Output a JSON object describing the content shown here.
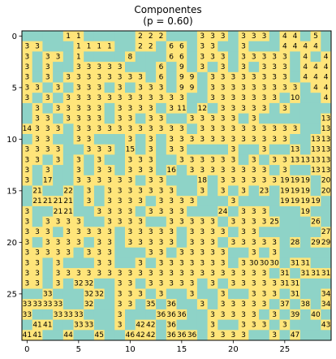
{
  "chart_data": {
    "type": "heatmap",
    "title_line1": "Componentes",
    "title_line2": "(p = 0.60)",
    "xticks": [
      0,
      5,
      10,
      15,
      20,
      25
    ],
    "yticks": [
      0,
      5,
      10,
      15,
      20,
      25
    ],
    "rows": 30,
    "cols": 30,
    "colors": {
      "open": "#ffe57a",
      "closed": "#8ed3c7",
      "text": "#000000"
    },
    "grid": [
      [
        0,
        0,
        0,
        0,
        1,
        1,
        0,
        0,
        0,
        0,
        0,
        2,
        2,
        2,
        0,
        0,
        0,
        3,
        3,
        3,
        0,
        3,
        3,
        3,
        0,
        4,
        4,
        0,
        5,
        0
      ],
      [
        3,
        3,
        0,
        0,
        0,
        1,
        1,
        1,
        1,
        0,
        0,
        2,
        2,
        0,
        6,
        6,
        0,
        3,
        3,
        0,
        0,
        3,
        0,
        0,
        0,
        4,
        4,
        4,
        4,
        0
      ],
      [
        3,
        0,
        3,
        3,
        0,
        1,
        0,
        0,
        0,
        0,
        8,
        0,
        0,
        0,
        6,
        6,
        0,
        3,
        3,
        3,
        0,
        3,
        3,
        3,
        3,
        3,
        0,
        4,
        0,
        4
      ],
      [
        3,
        0,
        3,
        0,
        0,
        3,
        3,
        3,
        3,
        3,
        0,
        0,
        0,
        6,
        0,
        9,
        0,
        3,
        0,
        3,
        0,
        3,
        0,
        3,
        3,
        3,
        0,
        4,
        4,
        4
      ],
      [
        3,
        0,
        3,
        0,
        3,
        3,
        3,
        3,
        3,
        3,
        3,
        3,
        0,
        6,
        0,
        9,
        9,
        0,
        3,
        3,
        3,
        3,
        3,
        3,
        3,
        3,
        0,
        4,
        4,
        4
      ],
      [
        3,
        3,
        0,
        3,
        0,
        3,
        3,
        3,
        0,
        3,
        0,
        3,
        3,
        3,
        0,
        9,
        9,
        0,
        3,
        3,
        3,
        3,
        3,
        3,
        3,
        3,
        3,
        0,
        4,
        4
      ],
      [
        3,
        0,
        3,
        0,
        3,
        3,
        3,
        3,
        3,
        3,
        3,
        3,
        3,
        3,
        3,
        3,
        0,
        0,
        3,
        3,
        3,
        3,
        3,
        3,
        3,
        0,
        10,
        0,
        0,
        4
      ],
      [
        0,
        3,
        0,
        3,
        3,
        3,
        3,
        3,
        0,
        3,
        3,
        3,
        3,
        0,
        3,
        11,
        0,
        12,
        0,
        3,
        3,
        3,
        3,
        3,
        0,
        3,
        0,
        0,
        0,
        0
      ],
      [
        0,
        3,
        3,
        0,
        3,
        3,
        3,
        3,
        0,
        3,
        3,
        0,
        3,
        3,
        0,
        0,
        3,
        3,
        3,
        3,
        3,
        0,
        3,
        0,
        0,
        0,
        0,
        0,
        0,
        13
      ],
      [
        14,
        3,
        3,
        3,
        0,
        3,
        3,
        3,
        3,
        3,
        3,
        3,
        3,
        3,
        3,
        3,
        0,
        3,
        3,
        3,
        3,
        3,
        3,
        3,
        3,
        3,
        3,
        0,
        0,
        13
      ],
      [
        0,
        3,
        3,
        0,
        0,
        3,
        3,
        0,
        0,
        0,
        3,
        0,
        3,
        0,
        3,
        3,
        3,
        3,
        3,
        3,
        3,
        3,
        3,
        3,
        3,
        3,
        0,
        0,
        13,
        13
      ],
      [
        3,
        3,
        3,
        3,
        0,
        0,
        3,
        3,
        3,
        0,
        15,
        0,
        3,
        0,
        3,
        3,
        0,
        0,
        0,
        0,
        3,
        0,
        0,
        3,
        0,
        0,
        13,
        0,
        13,
        13
      ],
      [
        3,
        3,
        0,
        3,
        0,
        3,
        0,
        3,
        0,
        0,
        3,
        3,
        3,
        0,
        0,
        3,
        3,
        3,
        3,
        3,
        3,
        0,
        3,
        0,
        3,
        3,
        13,
        13,
        13,
        13
      ],
      [
        3,
        0,
        3,
        0,
        0,
        3,
        0,
        3,
        3,
        0,
        3,
        3,
        3,
        0,
        16,
        0,
        3,
        3,
        3,
        3,
        3,
        3,
        3,
        3,
        0,
        3,
        0,
        0,
        13,
        13
      ],
      [
        3,
        0,
        17,
        0,
        0,
        3,
        3,
        3,
        3,
        3,
        3,
        0,
        3,
        3,
        0,
        0,
        0,
        18,
        0,
        3,
        3,
        3,
        3,
        3,
        3,
        19,
        19,
        19,
        0,
        20
      ],
      [
        0,
        21,
        0,
        0,
        22,
        0,
        3,
        0,
        3,
        3,
        3,
        3,
        3,
        3,
        3,
        0,
        0,
        3,
        0,
        3,
        0,
        3,
        0,
        23,
        0,
        19,
        19,
        19,
        0,
        20
      ],
      [
        0,
        21,
        21,
        21,
        21,
        0,
        3,
        0,
        3,
        3,
        3,
        3,
        0,
        3,
        3,
        3,
        3,
        0,
        0,
        0,
        3,
        0,
        0,
        0,
        0,
        19,
        19,
        19,
        19,
        0
      ],
      [
        3,
        0,
        0,
        21,
        21,
        0,
        0,
        3,
        3,
        3,
        3,
        0,
        3,
        3,
        3,
        3,
        0,
        0,
        0,
        24,
        0,
        3,
        3,
        3,
        0,
        0,
        0,
        19,
        0,
        0
      ],
      [
        3,
        0,
        3,
        3,
        3,
        3,
        0,
        0,
        3,
        3,
        3,
        3,
        0,
        0,
        3,
        3,
        3,
        3,
        3,
        0,
        3,
        3,
        3,
        3,
        25,
        0,
        0,
        0,
        26,
        0
      ],
      [
        3,
        3,
        3,
        0,
        3,
        3,
        3,
        3,
        3,
        0,
        3,
        3,
        3,
        3,
        3,
        0,
        3,
        3,
        3,
        3,
        0,
        3,
        3,
        0,
        0,
        0,
        0,
        0,
        0,
        27
      ],
      [
        3,
        0,
        3,
        3,
        3,
        3,
        0,
        3,
        3,
        0,
        3,
        3,
        3,
        3,
        3,
        0,
        3,
        3,
        3,
        0,
        3,
        3,
        3,
        3,
        3,
        0,
        28,
        0,
        29,
        29
      ],
      [
        3,
        3,
        3,
        3,
        3,
        0,
        3,
        3,
        3,
        0,
        0,
        0,
        3,
        3,
        0,
        3,
        3,
        3,
        3,
        3,
        0,
        0,
        3,
        0,
        3,
        0,
        0,
        0,
        0,
        0
      ],
      [
        3,
        3,
        0,
        3,
        0,
        0,
        0,
        3,
        3,
        0,
        0,
        3,
        0,
        3,
        3,
        3,
        3,
        3,
        3,
        3,
        0,
        3,
        30,
        30,
        30,
        0,
        31,
        31,
        0,
        0
      ],
      [
        3,
        3,
        0,
        3,
        3,
        3,
        3,
        3,
        3,
        3,
        3,
        3,
        3,
        3,
        3,
        3,
        3,
        3,
        3,
        3,
        3,
        3,
        3,
        3,
        0,
        31,
        0,
        31,
        31,
        31
      ],
      [
        3,
        3,
        0,
        3,
        0,
        32,
        32,
        0,
        0,
        3,
        3,
        0,
        3,
        3,
        3,
        3,
        3,
        0,
        3,
        0,
        3,
        3,
        3,
        3,
        3,
        31,
        31,
        0,
        0,
        0
      ],
      [
        0,
        0,
        33,
        0,
        0,
        0,
        32,
        32,
        0,
        3,
        3,
        3,
        0,
        3,
        0,
        0,
        3,
        0,
        0,
        3,
        0,
        0,
        3,
        3,
        3,
        0,
        31,
        0,
        0,
        34
      ],
      [
        33,
        33,
        33,
        33,
        0,
        0,
        32,
        0,
        0,
        3,
        3,
        0,
        35,
        0,
        36,
        0,
        0,
        3,
        0,
        3,
        3,
        3,
        3,
        3,
        0,
        37,
        0,
        38,
        0,
        34
      ],
      [
        33,
        0,
        0,
        33,
        33,
        33,
        0,
        0,
        0,
        3,
        0,
        0,
        0,
        36,
        36,
        36,
        0,
        0,
        3,
        3,
        3,
        3,
        3,
        0,
        3,
        0,
        39,
        0,
        40,
        0
      ],
      [
        0,
        41,
        41,
        0,
        0,
        33,
        33,
        0,
        0,
        3,
        0,
        42,
        42,
        0,
        36,
        0,
        0,
        0,
        3,
        0,
        0,
        3,
        3,
        3,
        0,
        3,
        0,
        0,
        0,
        43
      ],
      [
        41,
        41,
        0,
        0,
        44,
        0,
        0,
        45,
        0,
        0,
        46,
        42,
        42,
        0,
        36,
        36,
        36,
        0,
        3,
        3,
        3,
        3,
        0,
        0,
        3,
        0,
        47,
        0,
        0,
        0
      ]
    ]
  }
}
